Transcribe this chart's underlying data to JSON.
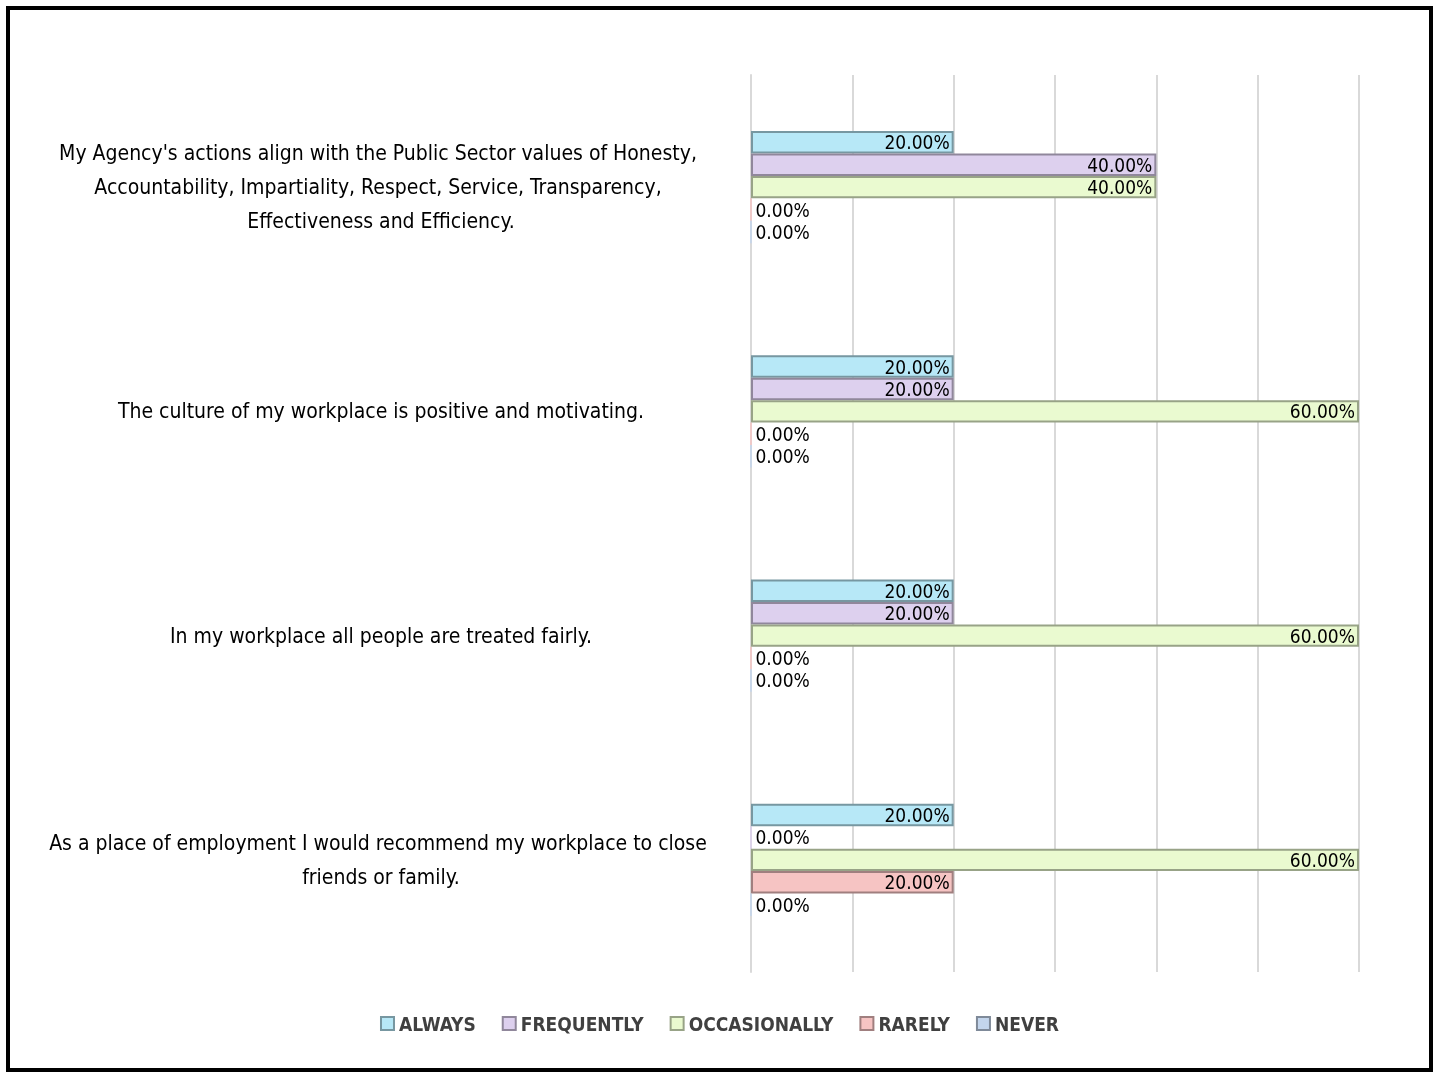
{
  "chart_data": {
    "type": "bar",
    "orientation": "horizontal",
    "categories": [
      "My Agency's actions align with the Public Sector values of Honesty, Accountability, Impartiality, Respect, Service, Transparency, Effectiveness and Efficiency.",
      "The culture of my workplace is positive and motivating.",
      "In my workplace all people are treated fairly.",
      "As a place of employment I would recommend my workplace to close friends or family."
    ],
    "series": [
      {
        "name": "ALWAYS",
        "color": "#b7e8f7",
        "values": [
          20,
          20,
          20,
          20
        ],
        "value_labels": [
          "20.00%",
          "20.00%",
          "20.00%",
          "20.00%"
        ]
      },
      {
        "name": "FREQUENTLY",
        "color": "#ddd0ee",
        "values": [
          40,
          20,
          20,
          0
        ],
        "value_labels": [
          "40.00%",
          "20.00%",
          "20.00%",
          "0.00%"
        ]
      },
      {
        "name": "OCCASIONALLY",
        "color": "#eafad0",
        "values": [
          40,
          60,
          60,
          60
        ],
        "value_labels": [
          "40.00%",
          "60.00%",
          "60.00%",
          "60.00%"
        ]
      },
      {
        "name": "RARELY",
        "color": "#f6c4c3",
        "values": [
          0,
          0,
          0,
          20
        ],
        "value_labels": [
          "0.00%",
          "0.00%",
          "0.00%",
          "20.00%"
        ]
      },
      {
        "name": "NEVER",
        "color": "#c3d5ec",
        "values": [
          0,
          0,
          0,
          0
        ],
        "value_labels": [
          "0.00%",
          "0.00%",
          "0.00%",
          "0.00%"
        ]
      }
    ],
    "xlim": [
      0,
      60
    ],
    "xticks": [
      {
        "value": 0,
        "label": null
      },
      {
        "value": 10,
        "label": null
      },
      {
        "value": 20,
        "label": null
      },
      {
        "value": 30,
        "label": null
      },
      {
        "value": 40,
        "label": null
      },
      {
        "value": 50,
        "label": null
      },
      {
        "value": 60,
        "label": null
      }
    ],
    "tick_labels": "y",
    "grid": "x",
    "legend": "bottom"
  }
}
